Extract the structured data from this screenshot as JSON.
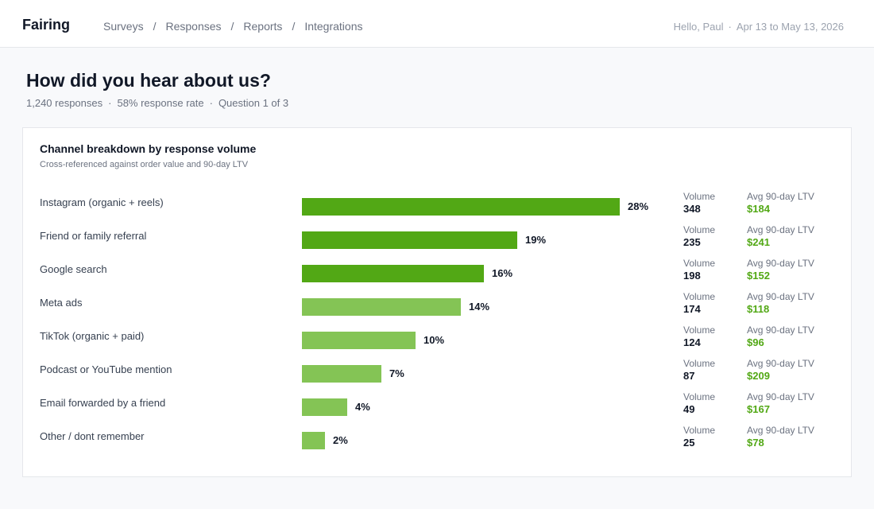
{
  "brand": "Fairing",
  "nav": [
    "Surveys",
    "Responses",
    "Reports",
    "Integrations"
  ],
  "nav_separator": "/",
  "meta": {
    "greeting": "Hello, Paul",
    "dot": "·",
    "date_range": "Apr 13 to May 13, 2026"
  },
  "page": {
    "title": "How did you hear about us?",
    "stats": [
      "1,240 responses",
      "58% response rate",
      "Question 1 of 3"
    ],
    "dot": "·"
  },
  "colors": {
    "strong": "#52a815",
    "light": "#84c455",
    "ltv": "#52a815"
  },
  "chart_data": {
    "type": "bar",
    "title": "Channel breakdown by response volume",
    "subtitle": "Cross-referenced against order value and 90-day LTV",
    "volume_label": "Volume",
    "ltv_label": "Avg 90-day LTV",
    "categories": [
      "Instagram (organic + reels)",
      "Friend or family referral",
      "Google search",
      "Meta ads",
      "TikTok (organic + paid)",
      "Podcast or YouTube mention",
      "Email forwarded by a friend",
      "Other / dont remember"
    ],
    "values": [
      28,
      19,
      16,
      14,
      10,
      7,
      4,
      2
    ],
    "value_labels": [
      "28%",
      "19%",
      "16%",
      "14%",
      "10%",
      "7%",
      "4%",
      "2%"
    ],
    "volume": [
      "348",
      "235",
      "198",
      "174",
      "124",
      "87",
      "49",
      "25"
    ],
    "ltv": [
      "$184",
      "$241",
      "$152",
      "$118",
      "$96",
      "$209",
      "$167",
      "$78"
    ],
    "highlight_top": 3,
    "xlim": [
      0,
      28
    ]
  }
}
